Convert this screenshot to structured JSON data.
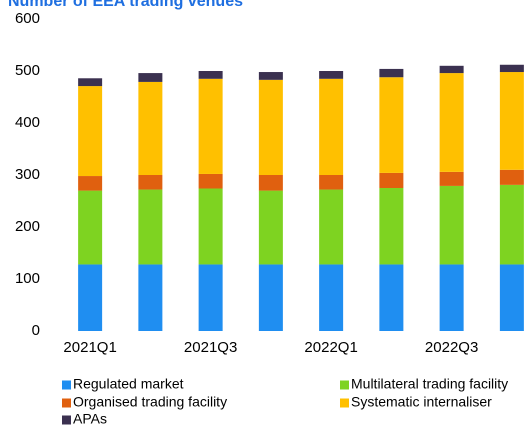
{
  "chart_data": {
    "type": "stacked_bar",
    "title": "Number of EEA trading venues",
    "categories": [
      "2021Q1",
      null,
      "2021Q3",
      null,
      "2022Q1",
      null,
      "2022Q3",
      null
    ],
    "series": [
      {
        "name": "Regulated market",
        "color": "#1f8ef1",
        "values": [
          128,
          128,
          128,
          128,
          128,
          128,
          128,
          128
        ]
      },
      {
        "name": "Multilateral trading facility",
        "color": "#7ed321",
        "values": [
          142,
          144,
          146,
          142,
          144,
          147,
          151,
          153
        ]
      },
      {
        "name": "Organised trading facility",
        "color": "#e0600f",
        "values": [
          28,
          28,
          28,
          30,
          28,
          29,
          27,
          29
        ]
      },
      {
        "name": "Systematic internaliser",
        "color": "#ffc000",
        "values": [
          173,
          179,
          183,
          183,
          185,
          184,
          190,
          188
        ]
      },
      {
        "name": "APAs",
        "color": "#3b3150",
        "values": [
          15,
          17,
          15,
          15,
          15,
          16,
          14,
          14
        ]
      }
    ],
    "ylim": [
      0,
      600
    ],
    "yticks": [
      0,
      100,
      200,
      300,
      400,
      500,
      600
    ],
    "grid": false
  }
}
